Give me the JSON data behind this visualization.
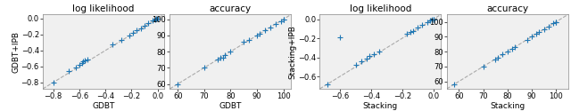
{
  "panel1": {
    "title": "log likelihood",
    "xlabel": "GDBT",
    "ylabel": "GDBT+IPB",
    "xlim": [
      -0.88,
      0.05
    ],
    "ylim": [
      -0.88,
      0.05
    ],
    "xticks": [
      -0.8,
      -0.6,
      -0.4,
      -0.2,
      0.0
    ],
    "yticks": [
      -0.8,
      -0.6,
      -0.4,
      -0.2,
      0.0
    ],
    "x": [
      -0.8,
      -0.68,
      -0.63,
      -0.6,
      -0.58,
      -0.57,
      -0.56,
      -0.54,
      -0.35,
      -0.28,
      -0.22,
      -0.19,
      -0.16,
      -0.13,
      -0.1,
      -0.07,
      -0.04,
      -0.02,
      -0.01,
      0.0
    ],
    "y": [
      -0.8,
      -0.66,
      -0.61,
      -0.58,
      -0.56,
      -0.54,
      -0.53,
      -0.51,
      -0.33,
      -0.27,
      -0.21,
      -0.18,
      -0.15,
      -0.12,
      -0.09,
      -0.06,
      -0.03,
      -0.015,
      -0.005,
      0.0
    ]
  },
  "panel2": {
    "title": "accuracy",
    "xlabel": "GDBT",
    "ylabel": "",
    "xlim": [
      57,
      103
    ],
    "ylim": [
      57,
      103
    ],
    "xticks": [
      60,
      70,
      80,
      90,
      100
    ],
    "yticks": [
      60,
      70,
      80,
      90,
      100
    ],
    "x": [
      60,
      70,
      75,
      76,
      77,
      78,
      80,
      85,
      87,
      90,
      91,
      93,
      95,
      97,
      99,
      100,
      100
    ],
    "y": [
      60,
      70,
      75,
      76,
      76,
      78,
      80,
      86,
      87,
      90,
      91,
      93,
      95,
      97,
      99,
      100,
      100
    ]
  },
  "panel3": {
    "title": "log likelihood",
    "xlabel": "Stacking",
    "ylabel": "Stacking+IPB",
    "xlim": [
      -0.73,
      0.05
    ],
    "ylim": [
      -0.73,
      0.05
    ],
    "xticks": [
      -0.6,
      -0.4,
      -0.2,
      0.0
    ],
    "yticks": [
      -0.6,
      -0.4,
      -0.2,
      0.0
    ],
    "x": [
      -0.68,
      -0.6,
      -0.5,
      -0.46,
      -0.43,
      -0.41,
      -0.38,
      -0.35,
      -0.17,
      -0.15,
      -0.13,
      -0.1,
      -0.07,
      -0.04,
      -0.02,
      -0.01,
      0.0,
      0.0
    ],
    "y": [
      -0.68,
      -0.19,
      -0.48,
      -0.44,
      -0.41,
      -0.39,
      -0.37,
      -0.34,
      -0.15,
      -0.13,
      -0.12,
      -0.09,
      -0.06,
      -0.03,
      -0.015,
      -0.005,
      0.0,
      0.0
    ]
  },
  "panel4": {
    "title": "accuracy",
    "xlabel": "Stacking",
    "ylabel": "",
    "xlim": [
      55,
      105
    ],
    "ylim": [
      55,
      105
    ],
    "xticks": [
      60,
      70,
      80,
      90,
      100
    ],
    "yticks": [
      60,
      70,
      80,
      90,
      100
    ],
    "x": [
      58,
      70,
      75,
      76,
      78,
      80,
      82,
      83,
      88,
      90,
      92,
      93,
      95,
      97,
      99,
      100,
      100
    ],
    "y": [
      58,
      70,
      75,
      76,
      78,
      80,
      82,
      83,
      88,
      90,
      92,
      93,
      95,
      97,
      99,
      100,
      100
    ]
  },
  "marker_color": "#1f77b4",
  "marker": "+",
  "marker_size": 18,
  "marker_lw": 0.8,
  "line_color": "#aaaaaa",
  "line_style": "--",
  "line_width": 0.8,
  "title_fontsize": 7.5,
  "label_fontsize": 6.5,
  "tick_fontsize": 6,
  "bg_color": "#f0f0f0"
}
